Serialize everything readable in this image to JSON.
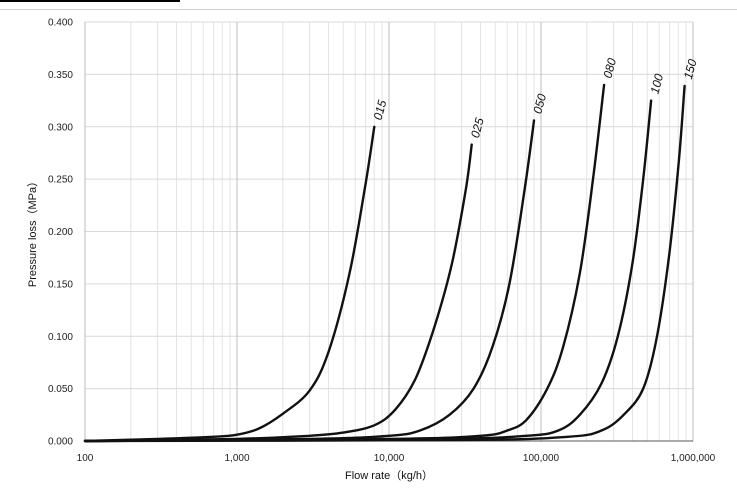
{
  "chart_data": {
    "type": "line",
    "title": "",
    "xlabel": "Flow rate（kg/h）",
    "ylabel": "Pressure loss（MPa）",
    "xscale": "log",
    "xlim": [
      100,
      1000000
    ],
    "ylim": [
      0,
      0.4
    ],
    "x_ticks": [
      "100",
      "1,000",
      "10,000",
      "100,000",
      "1,000,000"
    ],
    "y_ticks": [
      "0.000",
      "0.050",
      "0.100",
      "0.150",
      "0.200",
      "0.250",
      "0.300",
      "0.350",
      "0.400"
    ],
    "grid": true,
    "series": [
      {
        "name": "015",
        "x": [
          100,
          300,
          700,
          1000,
          1400,
          2000,
          3000,
          4000,
          5500,
          7000,
          8000
        ],
        "y": [
          0,
          0.002,
          0.004,
          0.006,
          0.012,
          0.026,
          0.048,
          0.085,
          0.16,
          0.245,
          0.3
        ]
      },
      {
        "name": "025",
        "x": [
          100,
          1000,
          3000,
          5000,
          8000,
          11000,
          15000,
          20000,
          26000,
          32000,
          35000
        ],
        "y": [
          0,
          0.002,
          0.005,
          0.008,
          0.015,
          0.03,
          0.06,
          0.11,
          0.17,
          0.24,
          0.283
        ]
      },
      {
        "name": "050",
        "x": [
          100,
          3000,
          10000,
          16000,
          25000,
          36000,
          48000,
          62000,
          78000,
          90000
        ],
        "y": [
          0,
          0.002,
          0.005,
          0.01,
          0.025,
          0.05,
          0.09,
          0.15,
          0.24,
          0.306
        ]
      },
      {
        "name": "080",
        "x": [
          100,
          10000,
          40000,
          60000,
          80000,
          110000,
          140000,
          180000,
          220000,
          260000
        ],
        "y": [
          0,
          0.002,
          0.005,
          0.01,
          0.02,
          0.05,
          0.09,
          0.16,
          0.25,
          0.34
        ]
      },
      {
        "name": "100",
        "x": [
          100,
          20000,
          80000,
          130000,
          180000,
          250000,
          320000,
          400000,
          470000,
          530000
        ],
        "y": [
          0,
          0.002,
          0.005,
          0.01,
          0.025,
          0.055,
          0.1,
          0.17,
          0.25,
          0.325
        ]
      },
      {
        "name": "150",
        "x": [
          100,
          30000,
          150000,
          250000,
          350000,
          470000,
          580000,
          700000,
          810000,
          880000
        ],
        "y": [
          0,
          0.001,
          0.004,
          0.01,
          0.025,
          0.05,
          0.1,
          0.18,
          0.27,
          0.339
        ]
      }
    ]
  }
}
